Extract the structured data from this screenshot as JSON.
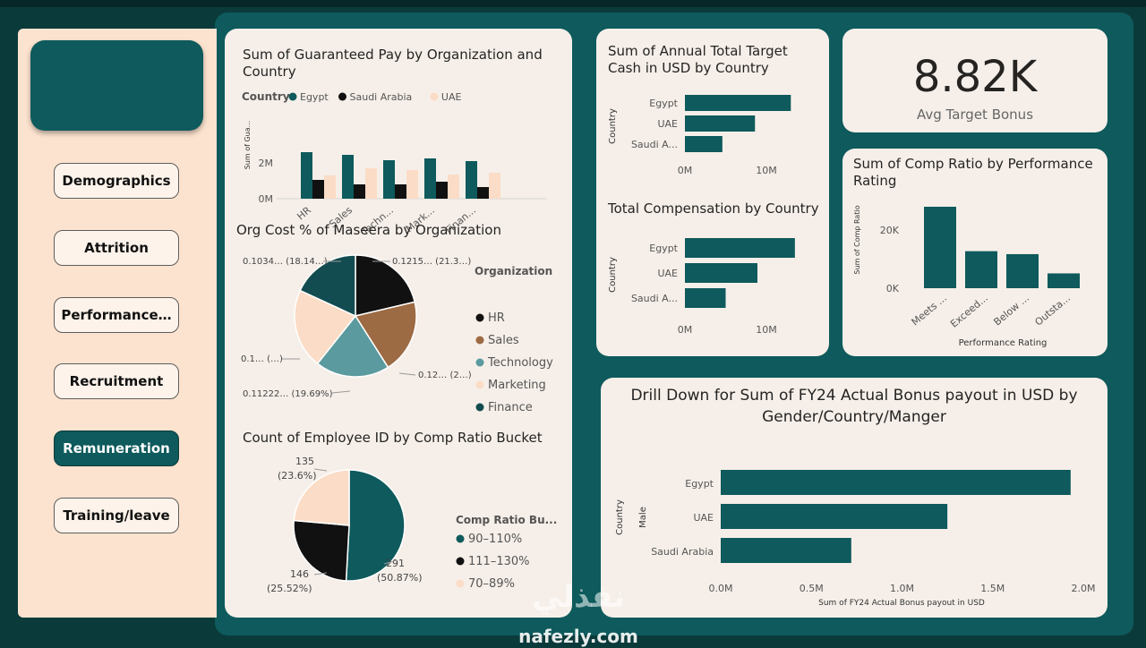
{
  "sidebar": {
    "nav": [
      {
        "label": "Demographics",
        "active": false
      },
      {
        "label": "Attrition",
        "active": false
      },
      {
        "label": "Performance…",
        "active": false
      },
      {
        "label": "Recruitment",
        "active": false
      },
      {
        "label": "Remuneration",
        "active": true
      },
      {
        "label": "Training/leave",
        "active": false
      }
    ]
  },
  "guaranteed_pay": {
    "title_line1": "Sum of Guaranteed Pay by Organization and",
    "title_line2": "Country",
    "legend_title": "Country",
    "ylabel": "Sum of Gua...",
    "yticks": [
      "2M",
      "0M"
    ],
    "colors": [
      "#0e5a5c",
      "#111111",
      "#fbdcc6"
    ],
    "chart_data": {
      "type": "bar",
      "categories": [
        "HR",
        "Sales",
        "Techn...",
        "Mark...",
        "Finan..."
      ],
      "series": [
        {
          "name": "Egypt",
          "values": [
            2.6,
            2.45,
            2.15,
            2.25,
            2.1
          ]
        },
        {
          "name": "Saudi Arabia",
          "values": [
            1.05,
            0.8,
            0.8,
            0.95,
            0.65
          ]
        },
        {
          "name": "UAE",
          "values": [
            1.3,
            1.7,
            1.6,
            1.35,
            1.45
          ]
        }
      ],
      "ylim": [
        0,
        3
      ]
    }
  },
  "org_cost": {
    "title": "Org Cost % of Maseera by Organization",
    "legend_title": "Organization",
    "chart_data": {
      "type": "pie",
      "labels": [
        "HR",
        "Sales",
        "Technology",
        "Marketing",
        "Finance"
      ],
      "values": [
        21.3,
        19.7,
        19.69,
        21.16,
        18.14
      ],
      "colors": [
        "#111111",
        "#9c6a43",
        "#5b9a9e",
        "#fbdcc6",
        "#124b50"
      ],
      "data_labels": [
        "0.1215… (21.3…)",
        "0.12… (2…)",
        "0.11222… (19.69%)",
        "0.1… (…)",
        "0.1034… (18.14…)"
      ]
    }
  },
  "comp_ratio_bucket": {
    "title": "Count of Employee ID by Comp Ratio Bucket",
    "legend_title": "Comp Ratio Bu...",
    "chart_data": {
      "type": "pie",
      "labels": [
        "90–110%",
        "111–130%",
        "70–89%"
      ],
      "values": [
        291,
        146,
        135
      ],
      "colors": [
        "#0e5a5c",
        "#111111",
        "#fbdcc6"
      ],
      "data_labels": [
        {
          "value": "291",
          "pct": "(50.87%)"
        },
        {
          "value": "146",
          "pct": "(25.52%)"
        },
        {
          "value": "135",
          "pct": "(23.6%)"
        }
      ]
    }
  },
  "annual_tc": {
    "title_line1": "Sum of Annual Total Target",
    "title_line2": "Cash in USD by Country",
    "ylabel": "Country",
    "xticks": [
      "0M",
      "10M"
    ],
    "chart_data": {
      "type": "bar",
      "orientation": "horizontal",
      "categories": [
        "Egypt",
        "UAE",
        "Saudi A..."
      ],
      "values": [
        13,
        8.6,
        4.6
      ],
      "xlim": [
        0,
        14
      ]
    }
  },
  "total_comp": {
    "title": "Total Compensation by Country",
    "ylabel": "Country",
    "xticks": [
      "0M",
      "10M"
    ],
    "chart_data": {
      "type": "bar",
      "orientation": "horizontal",
      "categories": [
        "Egypt",
        "UAE",
        "Saudi A..."
      ],
      "values": [
        13.5,
        8.9,
        5.0
      ],
      "xlim": [
        0,
        14
      ]
    }
  },
  "kpi": {
    "value": "8.82K",
    "label": "Avg Target Bonus"
  },
  "comp_ratio_perf": {
    "title_line1": "Sum of Comp Ratio by Performance",
    "title_line2": "Rating",
    "ylabel": "Sum of Comp Ratio",
    "xlabel": "Performance Rating",
    "yticks": [
      "20K",
      "0K"
    ],
    "chart_data": {
      "type": "bar",
      "categories": [
        "Meets ...",
        "Exceed...",
        "Below ...",
        "Outsta..."
      ],
      "values": [
        27500,
        12500,
        11500,
        5000
      ],
      "ylim": [
        0,
        30000
      ]
    }
  },
  "drill_down": {
    "title_line1": "Drill Down for Sum of FY24 Actual Bonus payout in USD by",
    "title_line2": "Gender/Country/Manger",
    "ylabel_outer": "Country",
    "ylabel_inner": "Male",
    "xlabel": "Sum of FY24 Actual Bonus payout in USD",
    "xticks": [
      "0.0M",
      "0.5M",
      "1.0M",
      "1.5M",
      "2.0M"
    ],
    "chart_data": {
      "type": "bar",
      "orientation": "horizontal",
      "categories": [
        "Egypt",
        "UAE",
        "Saudi Arabia"
      ],
      "values": [
        1.93,
        1.25,
        0.72
      ],
      "xlim": [
        0,
        2.0
      ]
    }
  },
  "watermark": {
    "arabic": "نفذلي",
    "latin": "nafezly.com"
  }
}
